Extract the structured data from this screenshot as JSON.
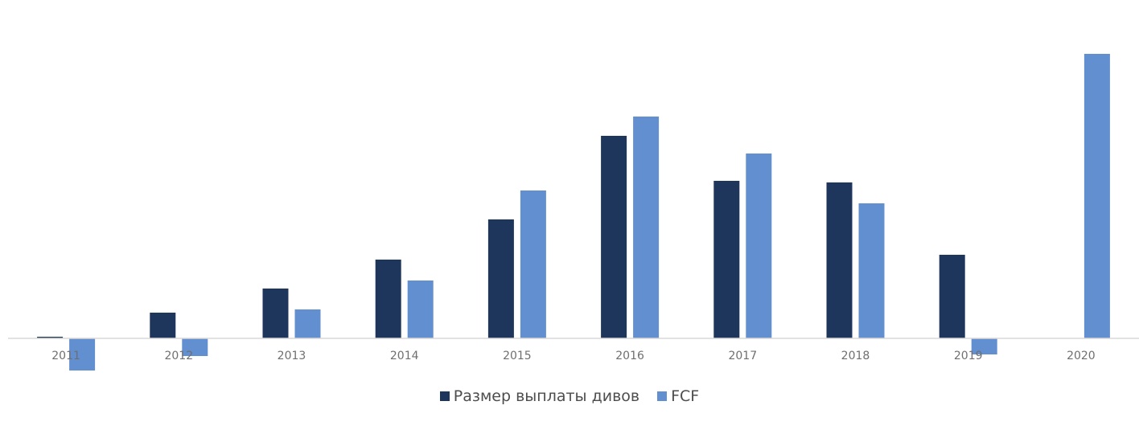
{
  "chart_data": {
    "type": "bar",
    "categories": [
      "2011",
      "2012",
      "2013",
      "2014",
      "2015",
      "2016",
      "2017",
      "2018",
      "2019",
      "2020"
    ],
    "series": [
      {
        "name": "Размер выплаты дивов",
        "color": "#1f365c",
        "values": [
          0.1,
          1.6,
          3.1,
          4.9,
          7.4,
          12.6,
          9.8,
          9.7,
          5.2,
          0
        ]
      },
      {
        "name": "FCF",
        "color": "#628fd0",
        "values": [
          -2.0,
          -1.1,
          1.8,
          3.6,
          9.2,
          13.8,
          11.5,
          8.4,
          -1.0,
          17.7
        ]
      }
    ],
    "title": "",
    "xlabel": "",
    "ylabel": "",
    "ylim": [
      -3,
      20
    ],
    "grid": false,
    "legend_position": "bottom"
  }
}
